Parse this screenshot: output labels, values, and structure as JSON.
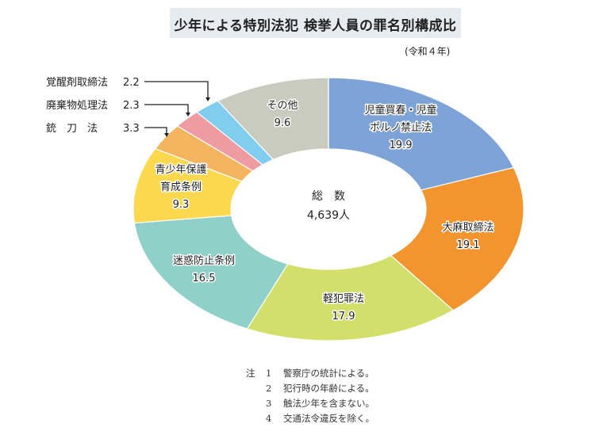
{
  "title": "少年による特別法犯 検挙人員の罪名別構成比",
  "subtitle": "(令和４年)",
  "chart_data": {
    "type": "pie",
    "donut": true,
    "title": "少年による特別法犯 検挙人員の罪名別構成比",
    "unit": "%",
    "center_label": [
      "総　数",
      "4,639人"
    ],
    "slices": [
      {
        "label": [
          "児童買春・児童",
          "ポルノ禁止法"
        ],
        "value": 19.9,
        "value_text": "19.9",
        "color": "#7ea3d6"
      },
      {
        "label": [
          "大麻取締法"
        ],
        "value": 19.1,
        "value_text": "19.1",
        "color": "#f2952e"
      },
      {
        "label": [
          "軽犯罪法"
        ],
        "value": 17.9,
        "value_text": "17.9",
        "color": "#d2df6a"
      },
      {
        "label": [
          "迷惑防止条例"
        ],
        "value": 16.5,
        "value_text": "16.5",
        "color": "#8fd0c8"
      },
      {
        "label": [
          "青少年保護",
          "育成条例"
        ],
        "value": 9.3,
        "value_text": "9.3",
        "color": "#fcd84e"
      },
      {
        "label": [
          "銃　刀　法"
        ],
        "value": 3.3,
        "value_text": "3.3",
        "color": "#f5b560"
      },
      {
        "label": [
          "廃棄物処理法"
        ],
        "value": 2.3,
        "value_text": "2.3",
        "color": "#ee9ba2"
      },
      {
        "label": [
          "覚醒剤取締法"
        ],
        "value": 2.2,
        "value_text": "2.2",
        "color": "#80cdf0"
      },
      {
        "label": [
          "その他"
        ],
        "value": 9.6,
        "value_text": "9.6",
        "color": "#cacbbf"
      }
    ]
  },
  "notes": {
    "head": "注",
    "items": [
      {
        "num": "1",
        "text": "警察庁の統計による。"
      },
      {
        "num": "2",
        "text": "犯行時の年齢による。"
      },
      {
        "num": "3",
        "text": "触法少年を含まない。"
      },
      {
        "num": "4",
        "text": "交通法令違反を除く。"
      }
    ]
  }
}
